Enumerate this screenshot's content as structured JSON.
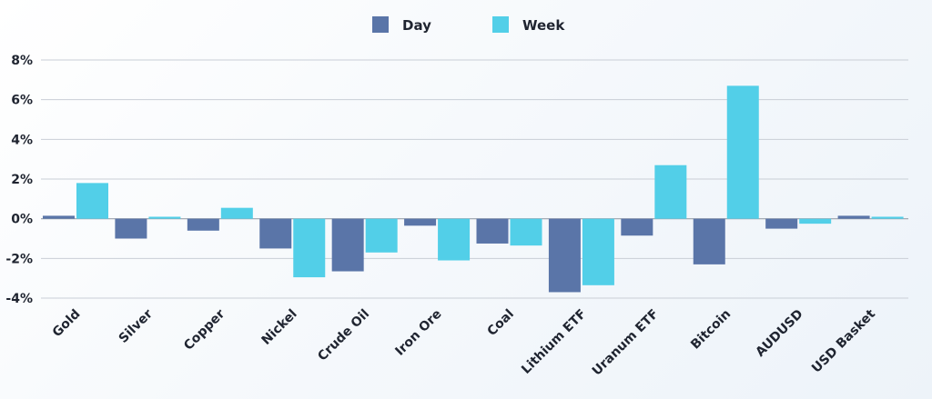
{
  "chart_data": {
    "type": "bar",
    "categories": [
      "Gold",
      "Silver",
      "Copper",
      "Nickel",
      "Crude Oil",
      "Iron Ore",
      "Coal",
      "Lithium ETF",
      "Uranum ETF",
      "Bitcoin",
      "AUDUSD",
      "USD Basket"
    ],
    "series": [
      {
        "name": "Day",
        "color": "#5a75a8",
        "values": [
          0.15,
          -1.0,
          -0.6,
          -1.5,
          -2.65,
          -0.35,
          -1.25,
          -3.7,
          -0.85,
          -2.3,
          -0.5,
          0.15
        ]
      },
      {
        "name": "Week",
        "color": "#52cfe8",
        "values": [
          1.8,
          0.1,
          0.55,
          -2.95,
          -1.7,
          -2.1,
          -1.35,
          -3.35,
          2.7,
          6.7,
          -0.25,
          0.1
        ]
      }
    ],
    "yticks": [
      "-4%",
      "-2%",
      "0%",
      "2%",
      "4%",
      "6%",
      "8%"
    ],
    "ylim": [
      -4,
      8
    ],
    "grid": true,
    "legend_position": "top-center"
  }
}
